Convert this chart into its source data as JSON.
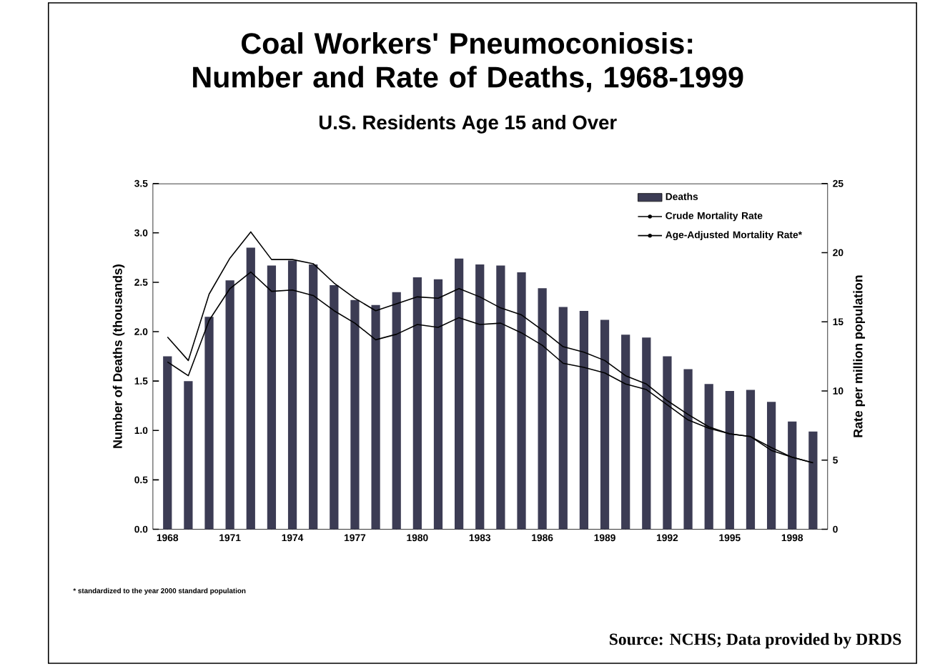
{
  "chart_data": {
    "type": "bar",
    "title": "Coal Workers' Pneumoconiosis: Number and Rate of Deaths, 1968-1999",
    "subtitle": "U.S. Residents Age 15 and Over",
    "ylabel": "Number of Deaths (thousands)",
    "y2label": "Rate per million population",
    "categories": [
      "1968",
      null,
      null,
      "1971",
      null,
      null,
      "1974",
      null,
      null,
      "1977",
      null,
      null,
      "1980",
      null,
      null,
      "1983",
      null,
      null,
      "1986",
      null,
      null,
      "1989",
      null,
      null,
      "1992",
      null,
      null,
      "1995",
      null,
      null,
      "1998",
      null
    ],
    "series": [
      {
        "name": "Deaths",
        "color": "#3c3c54",
        "values": [
          1.75,
          1.5,
          2.15,
          2.52,
          2.85,
          2.67,
          2.72,
          2.68,
          2.47,
          2.32,
          2.27,
          2.4,
          2.55,
          2.53,
          2.74,
          2.68,
          2.67,
          2.6,
          2.44,
          2.25,
          2.21,
          2.12,
          1.97,
          1.94,
          1.75,
          1.62,
          1.47,
          1.4,
          1.41,
          1.29,
          1.09,
          0.99
        ]
      },
      {
        "name": "Crude Mortality Rate",
        "type": "line",
        "axis": "y2",
        "color": "#000000",
        "values": [
          13.9,
          12.2,
          17.0,
          19.6,
          21.5,
          19.5,
          19.5,
          19.2,
          17.8,
          16.7,
          15.8,
          16.3,
          16.8,
          16.7,
          17.4,
          16.8,
          16.0,
          15.5,
          14.4,
          13.2,
          12.8,
          12.2,
          11.1,
          10.5,
          9.3,
          8.3,
          7.4,
          6.9,
          6.7,
          5.9,
          5.2,
          4.8
        ]
      },
      {
        "name": "Age-Adjusted Mortality Rate*",
        "type": "line",
        "axis": "y2",
        "color": "#000000",
        "values": [
          12.1,
          11.1,
          15.1,
          17.4,
          18.6,
          17.2,
          17.3,
          16.9,
          15.8,
          14.9,
          13.7,
          14.1,
          14.8,
          14.6,
          15.3,
          14.8,
          14.9,
          14.2,
          13.3,
          12.0,
          11.7,
          11.3,
          10.5,
          10.1,
          9.0,
          7.9,
          7.3,
          6.9,
          6.7,
          5.7,
          5.2,
          4.8
        ]
      }
    ],
    "ylim": [
      0,
      3.5
    ],
    "yticks": [
      {
        "value": 0,
        "label": "0.0"
      },
      {
        "value": 0.5,
        "label": "0.5"
      },
      {
        "value": 1,
        "label": "1.0"
      },
      {
        "value": 1.5,
        "label": "1.5"
      },
      {
        "value": 2,
        "label": "2.0"
      },
      {
        "value": 2.5,
        "label": "2.5"
      },
      {
        "value": 3,
        "label": "3.0"
      },
      {
        "value": 3.5,
        "label": "3.5"
      }
    ],
    "y2lim": [
      0,
      25
    ],
    "y2ticks": [
      0,
      5,
      10,
      15,
      20,
      25
    ],
    "legend": "top right",
    "annotations": [
      "* standardized to the year 2000 standard population",
      "Source: NCHS; Data provided by DRDS"
    ]
  }
}
